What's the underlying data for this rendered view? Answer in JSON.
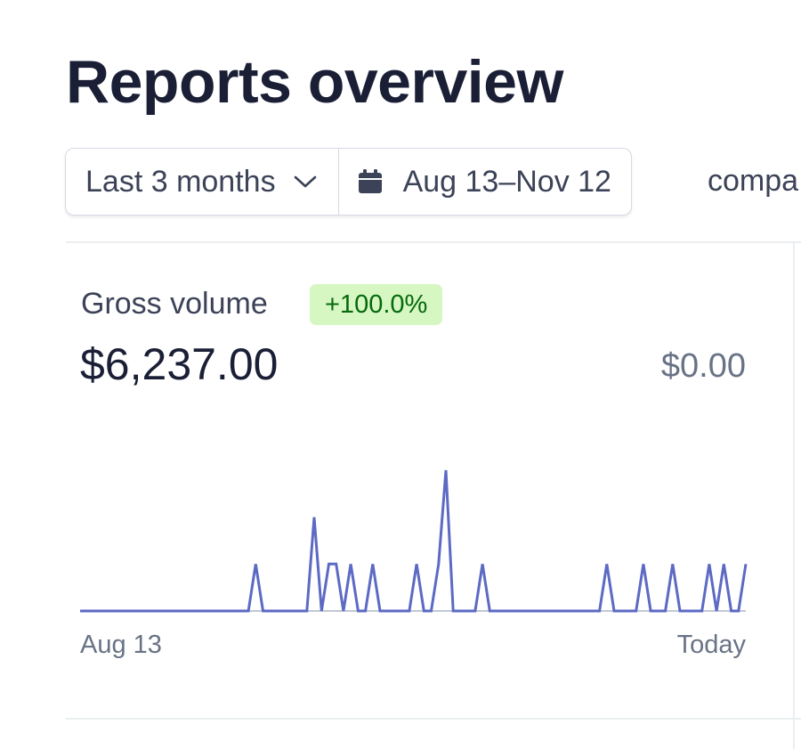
{
  "page": {
    "title": "Reports overview"
  },
  "filters": {
    "range": "Last 3 months",
    "date_range": "Aug 13–Nov 12",
    "compare_text": "compa"
  },
  "card": {
    "title": "Gross volume",
    "change_badge": "+100.0%",
    "value": "$6,237.00",
    "previous_value": "$0.00",
    "start_label": "Aug 13",
    "end_label": "Today",
    "line_color": "#5c6ac4"
  },
  "chart_data": {
    "type": "line",
    "xlabel": "",
    "ylabel": "",
    "x_start": "Aug 13",
    "x_end": "Today",
    "x": [
      0,
      1,
      2,
      3,
      4,
      5,
      6,
      7,
      8,
      9,
      10,
      11,
      12,
      13,
      14,
      15,
      16,
      17,
      18,
      19,
      20,
      21,
      22,
      23,
      24,
      25,
      26,
      27,
      28,
      29,
      30,
      31,
      32,
      33,
      34,
      35,
      36,
      37,
      38,
      39,
      40,
      41,
      42,
      43,
      44,
      45,
      46,
      47,
      48,
      49,
      50,
      51,
      52,
      53,
      54,
      55,
      56,
      57,
      58,
      59,
      60,
      61,
      62,
      63,
      64,
      65,
      66,
      67,
      68,
      69,
      70,
      71,
      72,
      73,
      74,
      75,
      76,
      77,
      78,
      79,
      80,
      81,
      82,
      83,
      84,
      85,
      86,
      87,
      88,
      89,
      90,
      91
    ],
    "values": [
      0,
      0,
      0,
      0,
      0,
      0,
      0,
      0,
      0,
      0,
      0,
      0,
      0,
      0,
      0,
      0,
      0,
      0,
      0,
      0,
      0,
      0,
      0,
      0,
      1,
      0,
      0,
      0,
      0,
      0,
      0,
      0,
      2,
      0,
      1,
      1,
      0,
      1,
      0,
      0,
      1,
      0,
      0,
      0,
      0,
      0,
      1,
      0,
      0,
      1,
      3,
      0,
      0,
      0,
      0,
      1,
      0,
      0,
      0,
      0,
      0,
      0,
      0,
      0,
      0,
      0,
      0,
      0,
      0,
      0,
      0,
      0,
      1,
      0,
      0,
      0,
      0,
      1,
      0,
      0,
      0,
      1,
      0,
      0,
      0,
      0,
      1,
      0,
      1,
      0,
      0,
      1
    ],
    "ylim": [
      0,
      3
    ],
    "grid": false
  }
}
